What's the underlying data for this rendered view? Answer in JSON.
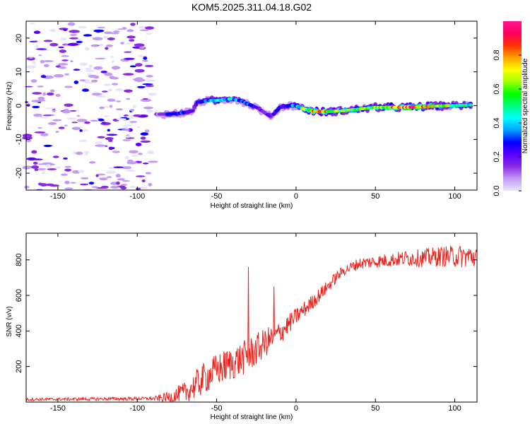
{
  "title": "KOM5.2025.311.04.18.G02",
  "chart_data": [
    {
      "type": "heatmap",
      "xlabel": "Height of straight line (km)",
      "ylabel": "Frequency (Hz)",
      "xlim": [
        -170,
        114
      ],
      "ylim": [
        -25,
        25
      ],
      "x_ticks": [
        -150,
        -100,
        -50,
        0,
        50,
        100
      ],
      "y_ticks": [
        -20,
        -10,
        0,
        10,
        20
      ],
      "colorbar_label": "Normalized spectral amplitude",
      "colorbar_ticks": [
        "0.0",
        "0.2",
        "0.4",
        "0.6",
        "0.8"
      ],
      "colorbar_range": [
        0,
        1
      ],
      "colormap": [
        "#e6e6fa",
        "#c39bf5",
        "#8a2be2",
        "#5a00ff",
        "#0000ff",
        "#00a0ff",
        "#00ffff",
        "#00ff80",
        "#00ff00",
        "#a0ff00",
        "#ffff00",
        "#ffa000",
        "#ff3000",
        "#ff0060",
        "#ff1493"
      ],
      "ridge": {
        "x": [
          -88,
          -80,
          -72,
          -65,
          -62,
          -55,
          -50,
          -45,
          -40,
          -35,
          -30,
          -25,
          -20,
          -17,
          -14,
          -10,
          -5,
          0,
          5,
          10,
          15,
          20,
          30,
          40,
          50,
          60,
          70,
          80,
          90,
          100,
          110
        ],
        "freq": [
          -2.5,
          -2.5,
          -2.2,
          -1.5,
          1.0,
          1.5,
          1.5,
          1.8,
          2.0,
          1.5,
          0.5,
          -0.5,
          -2.0,
          -3.0,
          -2.5,
          -0.5,
          0.0,
          0.0,
          -1.0,
          -1.5,
          -1.8,
          -1.8,
          -1.5,
          -1.0,
          -0.5,
          -0.5,
          -0.5,
          -0.3,
          -0.1,
          0.0,
          0.2
        ],
        "amplitude": [
          0.1,
          0.25,
          0.3,
          0.2,
          0.3,
          0.4,
          0.5,
          0.35,
          0.45,
          0.3,
          0.3,
          0.2,
          0.15,
          0.2,
          0.25,
          0.3,
          0.35,
          0.4,
          0.6,
          0.7,
          0.8,
          0.7,
          0.6,
          0.55,
          0.6,
          0.85,
          0.9,
          0.85,
          0.6,
          0.5,
          0.45
        ]
      },
      "noise_region": {
        "x_range": [
          -170,
          -90
        ],
        "freq_range": [
          -25,
          25
        ],
        "amplitude_range": [
          0.0,
          0.15
        ]
      }
    },
    {
      "type": "line",
      "xlabel": "Height of straight line (km)",
      "ylabel": "SNR (v/v)",
      "xlim": [
        -170,
        114
      ],
      "ylim": [
        0,
        950
      ],
      "x_ticks": [
        -150,
        -100,
        -50,
        0,
        50,
        100
      ],
      "y_ticks": [
        200,
        400,
        600,
        800
      ],
      "color": "#e8241e",
      "trend": {
        "x": [
          -170,
          -90,
          -80,
          -70,
          -60,
          -50,
          -40,
          -30,
          -20,
          -10,
          0,
          10,
          20,
          25,
          30,
          40,
          50,
          60,
          70,
          80,
          90,
          100,
          114
        ],
        "y": [
          15,
          20,
          25,
          50,
          120,
          180,
          220,
          260,
          330,
          390,
          480,
          560,
          650,
          700,
          740,
          780,
          790,
          800,
          810,
          810,
          820,
          820,
          820
        ]
      },
      "noise": {
        "x": [
          -170,
          -90,
          -60,
          -30,
          0,
          30,
          60,
          114
        ],
        "amp": [
          8,
          10,
          90,
          100,
          50,
          30,
          40,
          70
        ]
      },
      "spikes": [
        {
          "x": -30,
          "y": 760
        },
        {
          "x": -14,
          "y": 650
        }
      ]
    }
  ]
}
